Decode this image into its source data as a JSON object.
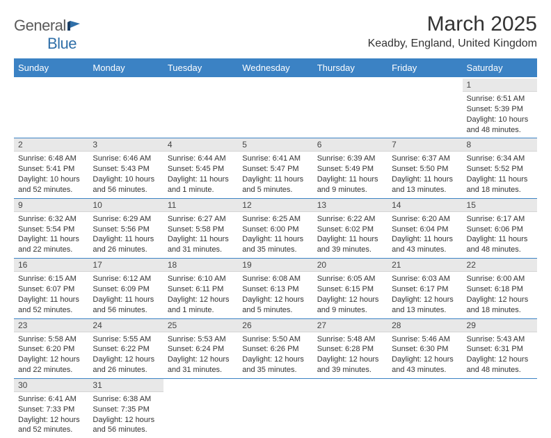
{
  "logo": {
    "text1": "General",
    "text2": "Blue"
  },
  "title": "March 2025",
  "location": "Keadby, England, United Kingdom",
  "colors": {
    "header_bg": "#3b82c4",
    "header_text": "#ffffff",
    "daynum_bg": "#e8e8e8",
    "border": "#3b82c4",
    "logo_gray": "#5a5a5a",
    "logo_blue": "#2f6fa8"
  },
  "day_headers": [
    "Sunday",
    "Monday",
    "Tuesday",
    "Wednesday",
    "Thursday",
    "Friday",
    "Saturday"
  ],
  "weeks": [
    [
      null,
      null,
      null,
      null,
      null,
      null,
      {
        "n": "1",
        "sunrise": "Sunrise: 6:51 AM",
        "sunset": "Sunset: 5:39 PM",
        "daylight": "Daylight: 10 hours and 48 minutes."
      }
    ],
    [
      {
        "n": "2",
        "sunrise": "Sunrise: 6:48 AM",
        "sunset": "Sunset: 5:41 PM",
        "daylight": "Daylight: 10 hours and 52 minutes."
      },
      {
        "n": "3",
        "sunrise": "Sunrise: 6:46 AM",
        "sunset": "Sunset: 5:43 PM",
        "daylight": "Daylight: 10 hours and 56 minutes."
      },
      {
        "n": "4",
        "sunrise": "Sunrise: 6:44 AM",
        "sunset": "Sunset: 5:45 PM",
        "daylight": "Daylight: 11 hours and 1 minute."
      },
      {
        "n": "5",
        "sunrise": "Sunrise: 6:41 AM",
        "sunset": "Sunset: 5:47 PM",
        "daylight": "Daylight: 11 hours and 5 minutes."
      },
      {
        "n": "6",
        "sunrise": "Sunrise: 6:39 AM",
        "sunset": "Sunset: 5:49 PM",
        "daylight": "Daylight: 11 hours and 9 minutes."
      },
      {
        "n": "7",
        "sunrise": "Sunrise: 6:37 AM",
        "sunset": "Sunset: 5:50 PM",
        "daylight": "Daylight: 11 hours and 13 minutes."
      },
      {
        "n": "8",
        "sunrise": "Sunrise: 6:34 AM",
        "sunset": "Sunset: 5:52 PM",
        "daylight": "Daylight: 11 hours and 18 minutes."
      }
    ],
    [
      {
        "n": "9",
        "sunrise": "Sunrise: 6:32 AM",
        "sunset": "Sunset: 5:54 PM",
        "daylight": "Daylight: 11 hours and 22 minutes."
      },
      {
        "n": "10",
        "sunrise": "Sunrise: 6:29 AM",
        "sunset": "Sunset: 5:56 PM",
        "daylight": "Daylight: 11 hours and 26 minutes."
      },
      {
        "n": "11",
        "sunrise": "Sunrise: 6:27 AM",
        "sunset": "Sunset: 5:58 PM",
        "daylight": "Daylight: 11 hours and 31 minutes."
      },
      {
        "n": "12",
        "sunrise": "Sunrise: 6:25 AM",
        "sunset": "Sunset: 6:00 PM",
        "daylight": "Daylight: 11 hours and 35 minutes."
      },
      {
        "n": "13",
        "sunrise": "Sunrise: 6:22 AM",
        "sunset": "Sunset: 6:02 PM",
        "daylight": "Daylight: 11 hours and 39 minutes."
      },
      {
        "n": "14",
        "sunrise": "Sunrise: 6:20 AM",
        "sunset": "Sunset: 6:04 PM",
        "daylight": "Daylight: 11 hours and 43 minutes."
      },
      {
        "n": "15",
        "sunrise": "Sunrise: 6:17 AM",
        "sunset": "Sunset: 6:06 PM",
        "daylight": "Daylight: 11 hours and 48 minutes."
      }
    ],
    [
      {
        "n": "16",
        "sunrise": "Sunrise: 6:15 AM",
        "sunset": "Sunset: 6:07 PM",
        "daylight": "Daylight: 11 hours and 52 minutes."
      },
      {
        "n": "17",
        "sunrise": "Sunrise: 6:12 AM",
        "sunset": "Sunset: 6:09 PM",
        "daylight": "Daylight: 11 hours and 56 minutes."
      },
      {
        "n": "18",
        "sunrise": "Sunrise: 6:10 AM",
        "sunset": "Sunset: 6:11 PM",
        "daylight": "Daylight: 12 hours and 1 minute."
      },
      {
        "n": "19",
        "sunrise": "Sunrise: 6:08 AM",
        "sunset": "Sunset: 6:13 PM",
        "daylight": "Daylight: 12 hours and 5 minutes."
      },
      {
        "n": "20",
        "sunrise": "Sunrise: 6:05 AM",
        "sunset": "Sunset: 6:15 PM",
        "daylight": "Daylight: 12 hours and 9 minutes."
      },
      {
        "n": "21",
        "sunrise": "Sunrise: 6:03 AM",
        "sunset": "Sunset: 6:17 PM",
        "daylight": "Daylight: 12 hours and 13 minutes."
      },
      {
        "n": "22",
        "sunrise": "Sunrise: 6:00 AM",
        "sunset": "Sunset: 6:18 PM",
        "daylight": "Daylight: 12 hours and 18 minutes."
      }
    ],
    [
      {
        "n": "23",
        "sunrise": "Sunrise: 5:58 AM",
        "sunset": "Sunset: 6:20 PM",
        "daylight": "Daylight: 12 hours and 22 minutes."
      },
      {
        "n": "24",
        "sunrise": "Sunrise: 5:55 AM",
        "sunset": "Sunset: 6:22 PM",
        "daylight": "Daylight: 12 hours and 26 minutes."
      },
      {
        "n": "25",
        "sunrise": "Sunrise: 5:53 AM",
        "sunset": "Sunset: 6:24 PM",
        "daylight": "Daylight: 12 hours and 31 minutes."
      },
      {
        "n": "26",
        "sunrise": "Sunrise: 5:50 AM",
        "sunset": "Sunset: 6:26 PM",
        "daylight": "Daylight: 12 hours and 35 minutes."
      },
      {
        "n": "27",
        "sunrise": "Sunrise: 5:48 AM",
        "sunset": "Sunset: 6:28 PM",
        "daylight": "Daylight: 12 hours and 39 minutes."
      },
      {
        "n": "28",
        "sunrise": "Sunrise: 5:46 AM",
        "sunset": "Sunset: 6:30 PM",
        "daylight": "Daylight: 12 hours and 43 minutes."
      },
      {
        "n": "29",
        "sunrise": "Sunrise: 5:43 AM",
        "sunset": "Sunset: 6:31 PM",
        "daylight": "Daylight: 12 hours and 48 minutes."
      }
    ],
    [
      {
        "n": "30",
        "sunrise": "Sunrise: 6:41 AM",
        "sunset": "Sunset: 7:33 PM",
        "daylight": "Daylight: 12 hours and 52 minutes."
      },
      {
        "n": "31",
        "sunrise": "Sunrise: 6:38 AM",
        "sunset": "Sunset: 7:35 PM",
        "daylight": "Daylight: 12 hours and 56 minutes."
      },
      null,
      null,
      null,
      null,
      null
    ]
  ]
}
